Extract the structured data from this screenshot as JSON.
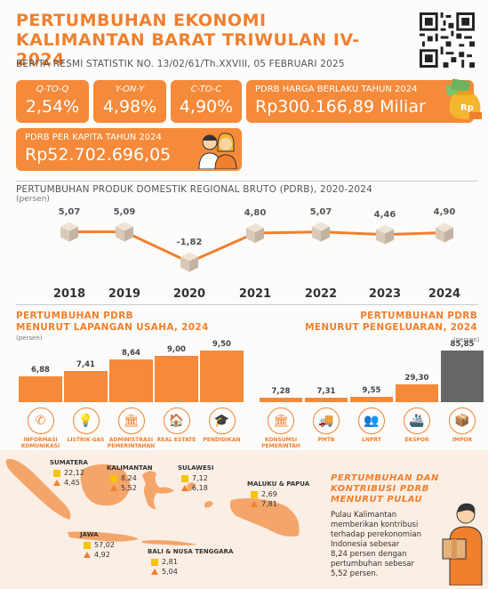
{
  "header": {
    "title_line1": "PERTUMBUHAN EKONOMI",
    "title_line2": "KALIMANTAN BARAT TRIWULAN IV-2024",
    "subtitle": "BERITA RESMI STATISTIK NO. 13/02/61/Th.XXVIII, 05 FEBRUARI 2025"
  },
  "cards": {
    "qtoq": {
      "label": "Q-TO-Q",
      "value": "2,54%"
    },
    "yony": {
      "label": "Y-ON-Y",
      "value": "4,98%"
    },
    "ctoc": {
      "label": "C-TO-C",
      "value": "4,90%"
    },
    "pdrb_hb": {
      "label": "PDRB HARGA BERLAKU TAHUN 2024",
      "value": "Rp300.166,89 Miliar"
    },
    "per_kapita": {
      "label": "PDRB PER KAPITA TAHUN 2024",
      "value": "Rp52.702.696,05"
    }
  },
  "icons": {
    "money": "money-bag-icon",
    "people": "people-icon"
  },
  "colors": {
    "accent": "#f07f2e",
    "bar": "#f48a3a",
    "dark_bar": "#666666",
    "yellow": "#f5c400"
  },
  "growth_section": {
    "title": "PERTUMBUHAN PRODUK DOMESTIK REGIONAL BRUTO (PDRB), 2020-2024",
    "unit": "(persen)"
  },
  "chart_data": [
    {
      "type": "line",
      "x": [
        "2018",
        "2019",
        "2020",
        "2021",
        "2022",
        "2023",
        "2024"
      ],
      "series": [
        {
          "values": [
            5.07,
            5.09,
            -1.82,
            4.8,
            5.07,
            4.46,
            4.9
          ]
        }
      ],
      "labels": [
        "5,07",
        "5,09",
        "-1,82",
        "4,80",
        "5,07",
        "4,46",
        "4,90"
      ]
    },
    {
      "type": "bar",
      "title": "PERTUMBUHAN PDRB MENURUT LAPANGAN USAHA, 2024",
      "unit": "(persen)",
      "categories": [
        "INFORMASI KOMUNIKASI",
        "LISTRIK GAS",
        "ADMINISTRASI PEMERINTAHAN",
        "REAL ESTATE",
        "PENDIDIKAN"
      ],
      "values": [
        6.88,
        7.41,
        8.64,
        9.0,
        9.5
      ],
      "labels": [
        "6,88",
        "7,41",
        "8,64",
        "9,00",
        "9,50"
      ]
    },
    {
      "type": "bar",
      "title": "PERTUMBUHAN PDRB MENURUT PENGELUARAN, 2024",
      "unit": "(persen)",
      "categories": [
        "KONSUMSI PEMERINTAH",
        "PMTB",
        "LNPRT",
        "EKSPOR",
        "IMPOR"
      ],
      "values": [
        7.28,
        7.31,
        9.55,
        29.3,
        85.85
      ],
      "labels": [
        "7,28",
        "7,31",
        "9,55",
        "29,30",
        "85,85"
      ]
    }
  ],
  "usaha_panel": {
    "title_line1": "PERTUMBUHAN PDRB",
    "title_line2": "MENURUT LAPANGAN USAHA, 2024",
    "unit": "(persen)",
    "icons": [
      "phone-icon",
      "bulb-icon",
      "government-building-icon",
      "house-icon",
      "graduate-icon"
    ]
  },
  "pengeluaran_panel": {
    "title_line1": "PERTUMBUHAN PDRB",
    "title_line2": "MENURUT PENGELUARAN, 2024",
    "unit": "(persen)",
    "icons": [
      "government-building-icon",
      "truck-icon",
      "people-group-icon",
      "ship-icon",
      "container-icon"
    ]
  },
  "islands": [
    {
      "name": "SUMATERA",
      "share": "22,12",
      "growth": "4,45"
    },
    {
      "name": "KALIMANTAN",
      "share": "8,24",
      "growth": "5,52"
    },
    {
      "name": "SULAWESI",
      "share": "7,12",
      "growth": "6,18"
    },
    {
      "name": "MALUKU & PAPUA",
      "share": "2,69",
      "growth": "7,81"
    },
    {
      "name": "JAWA",
      "share": "57,02",
      "growth": "4,92"
    },
    {
      "name": "BALI & NUSA TENGGARA",
      "share": "2,81",
      "growth": "5,04"
    }
  ],
  "pulau": {
    "title_line1": "PERTUMBUHAN DAN",
    "title_line2": "KONTRIBUSI PDRB",
    "title_line3": "MENURUT PULAU",
    "text": [
      "Pulau Kalimantan",
      "memberikan kontribusi",
      "terhadap perekonomian",
      "Indonesia sebesar",
      "8,24 persen dengan",
      "pertumbuhan sebesar",
      "5,52 persen."
    ]
  }
}
